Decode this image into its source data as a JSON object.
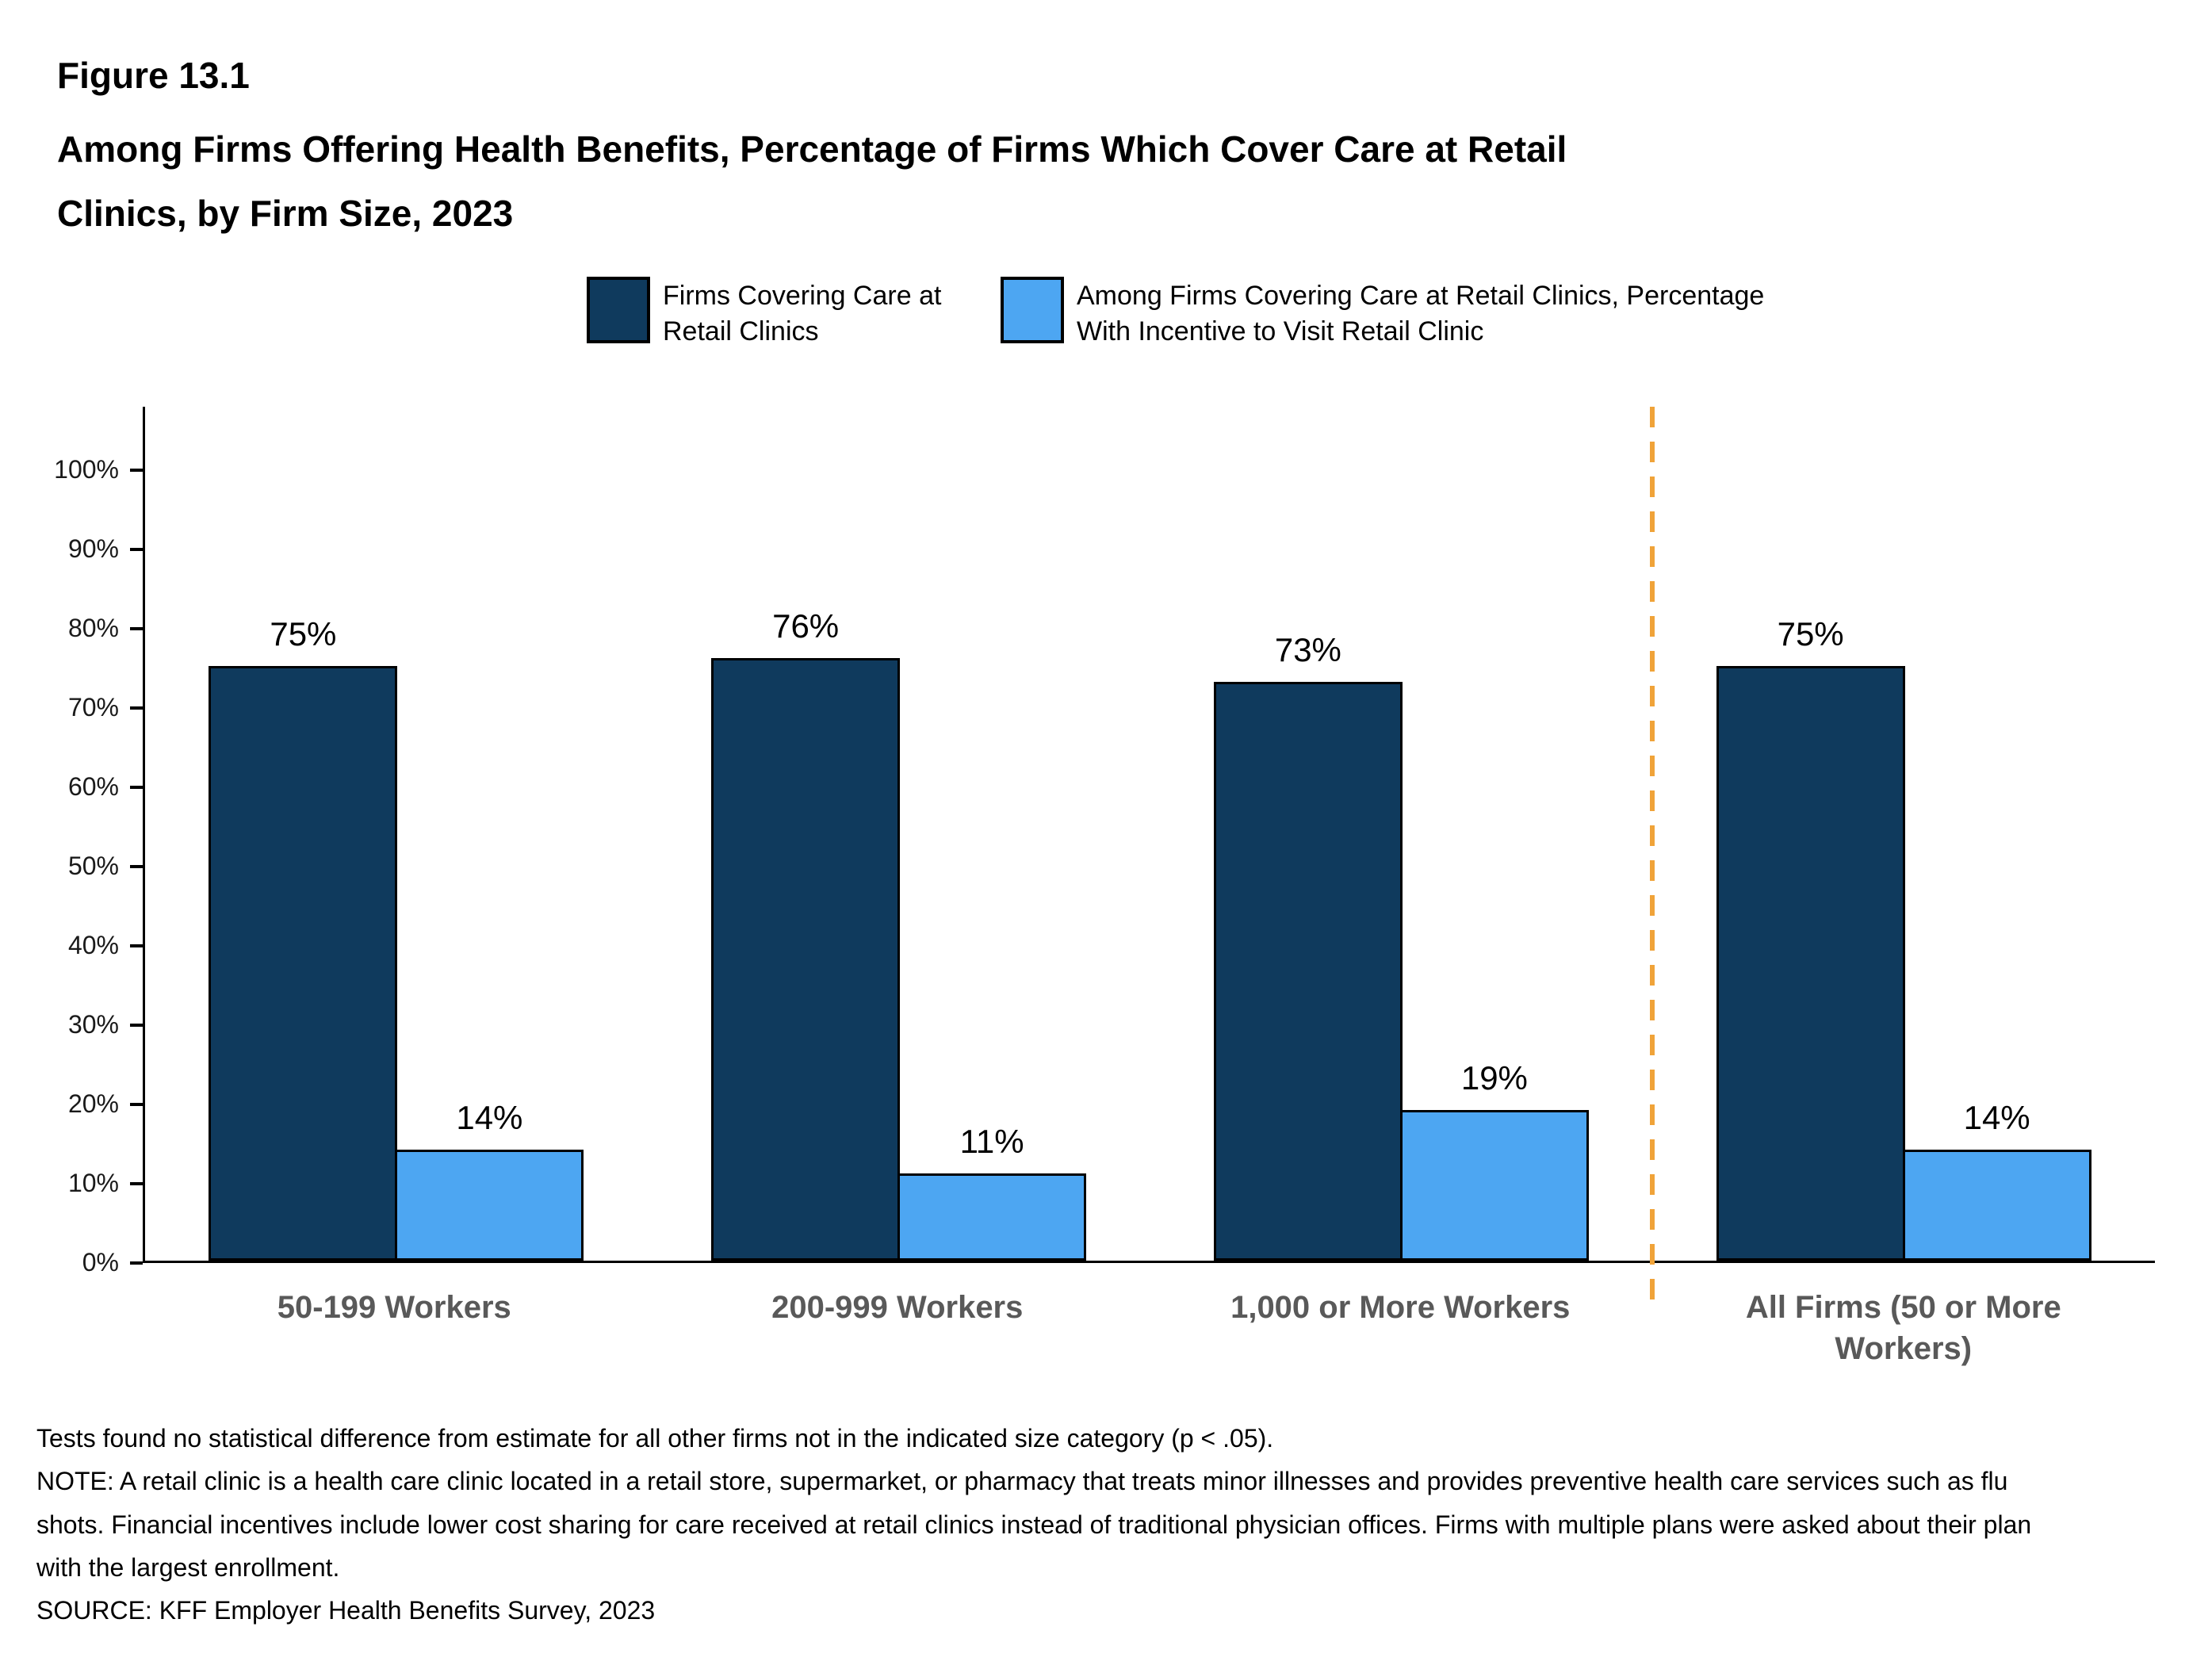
{
  "header": {
    "figure_label": "Figure 13.1",
    "title_line1": "Among Firms Offering Health Benefits, Percentage of Firms Which Cover Care at Retail",
    "title_line2": "Clinics, by Firm Size, 2023"
  },
  "legend": {
    "items": [
      {
        "label": "Firms Covering Care at Retail Clinics",
        "color": "#0F3A5D"
      },
      {
        "label": "Among Firms Covering Care at Retail Clinics, Percentage With Incentive to Visit Retail Clinic",
        "color": "#4DA6F2"
      }
    ]
  },
  "chart_data": {
    "type": "bar",
    "categories": [
      "50-199 Workers",
      "200-999 Workers",
      "1,000 or More Workers",
      "All Firms (50 or More Workers)"
    ],
    "series": [
      {
        "name": "Firms Covering Care at Retail Clinics",
        "color": "#0F3A5D",
        "values": [
          75,
          76,
          73,
          75
        ]
      },
      {
        "name": "Among Firms Covering Care at Retail Clinics, Percentage With Incentive to Visit Retail Clinic",
        "color": "#4DA6F2",
        "values": [
          14,
          11,
          19,
          14
        ]
      }
    ],
    "value_labels": [
      [
        "75%",
        "76%",
        "73%",
        "75%"
      ],
      [
        "14%",
        "11%",
        "19%",
        "14%"
      ]
    ],
    "ylim": [
      0,
      100
    ],
    "ytick_interval": 10,
    "ytick_labels": [
      "0%",
      "10%",
      "20%",
      "30%",
      "40%",
      "50%",
      "60%",
      "70%",
      "80%",
      "90%",
      "100%"
    ],
    "grid": false,
    "legend_position": "top",
    "separator": {
      "after_category_index": 2,
      "style": "dashed",
      "color": "#F0A339"
    }
  },
  "notes": {
    "lines": [
      "Tests found no statistical difference from estimate for all other firms not in the indicated size category (p < .05).",
      "NOTE: A retail clinic is a health care clinic located in a retail store, supermarket, or pharmacy that treats minor illnesses and provides preventive health care services such as flu shots. Financial incentives include lower cost sharing for care received at retail clinics instead of traditional physician offices.  Firms with multiple plans were asked about their plan with the largest enrollment.",
      "SOURCE: KFF Employer Health Benefits Survey, 2023"
    ]
  }
}
